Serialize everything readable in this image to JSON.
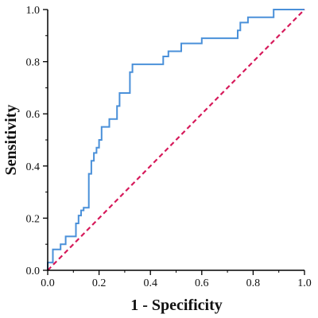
{
  "chart_data": {
    "type": "line",
    "xlabel": "1 - Specificity",
    "ylabel": "Sensitivity",
    "xlim": [
      0.0,
      1.0
    ],
    "ylim": [
      0.0,
      1.0
    ],
    "grid": false,
    "x_ticks": [
      "0.0",
      "0.2",
      "0.4",
      "0.6",
      "0.8",
      "1.0"
    ],
    "y_ticks": [
      "0.0",
      "0.2",
      "0.4",
      "0.6",
      "0.8",
      "1.0"
    ],
    "series": [
      {
        "kind": "roc-step",
        "color": "#4a90d9",
        "points": [
          [
            0.0,
            0.0
          ],
          [
            0.0,
            0.03
          ],
          [
            0.02,
            0.03
          ],
          [
            0.02,
            0.08
          ],
          [
            0.05,
            0.08
          ],
          [
            0.05,
            0.1
          ],
          [
            0.07,
            0.1
          ],
          [
            0.07,
            0.13
          ],
          [
            0.11,
            0.13
          ],
          [
            0.11,
            0.18
          ],
          [
            0.12,
            0.18
          ],
          [
            0.12,
            0.21
          ],
          [
            0.13,
            0.21
          ],
          [
            0.13,
            0.23
          ],
          [
            0.14,
            0.23
          ],
          [
            0.14,
            0.24
          ],
          [
            0.16,
            0.24
          ],
          [
            0.16,
            0.37
          ],
          [
            0.17,
            0.37
          ],
          [
            0.17,
            0.42
          ],
          [
            0.18,
            0.42
          ],
          [
            0.18,
            0.45
          ],
          [
            0.19,
            0.45
          ],
          [
            0.19,
            0.47
          ],
          [
            0.2,
            0.47
          ],
          [
            0.2,
            0.5
          ],
          [
            0.21,
            0.5
          ],
          [
            0.21,
            0.55
          ],
          [
            0.24,
            0.55
          ],
          [
            0.24,
            0.58
          ],
          [
            0.27,
            0.58
          ],
          [
            0.27,
            0.63
          ],
          [
            0.28,
            0.63
          ],
          [
            0.28,
            0.68
          ],
          [
            0.32,
            0.68
          ],
          [
            0.32,
            0.76
          ],
          [
            0.33,
            0.76
          ],
          [
            0.33,
            0.79
          ],
          [
            0.45,
            0.79
          ],
          [
            0.45,
            0.82
          ],
          [
            0.47,
            0.82
          ],
          [
            0.47,
            0.84
          ],
          [
            0.52,
            0.84
          ],
          [
            0.52,
            0.87
          ],
          [
            0.6,
            0.87
          ],
          [
            0.6,
            0.89
          ],
          [
            0.74,
            0.89
          ],
          [
            0.74,
            0.92
          ],
          [
            0.75,
            0.92
          ],
          [
            0.75,
            0.95
          ],
          [
            0.78,
            0.95
          ],
          [
            0.78,
            0.97
          ],
          [
            0.88,
            0.97
          ],
          [
            0.88,
            1.0
          ],
          [
            1.0,
            1.0
          ]
        ]
      },
      {
        "kind": "reference-diagonal",
        "color": "#d6195a",
        "dashed": true,
        "points": [
          [
            0.0,
            0.0
          ],
          [
            1.0,
            1.0
          ]
        ]
      }
    ]
  }
}
